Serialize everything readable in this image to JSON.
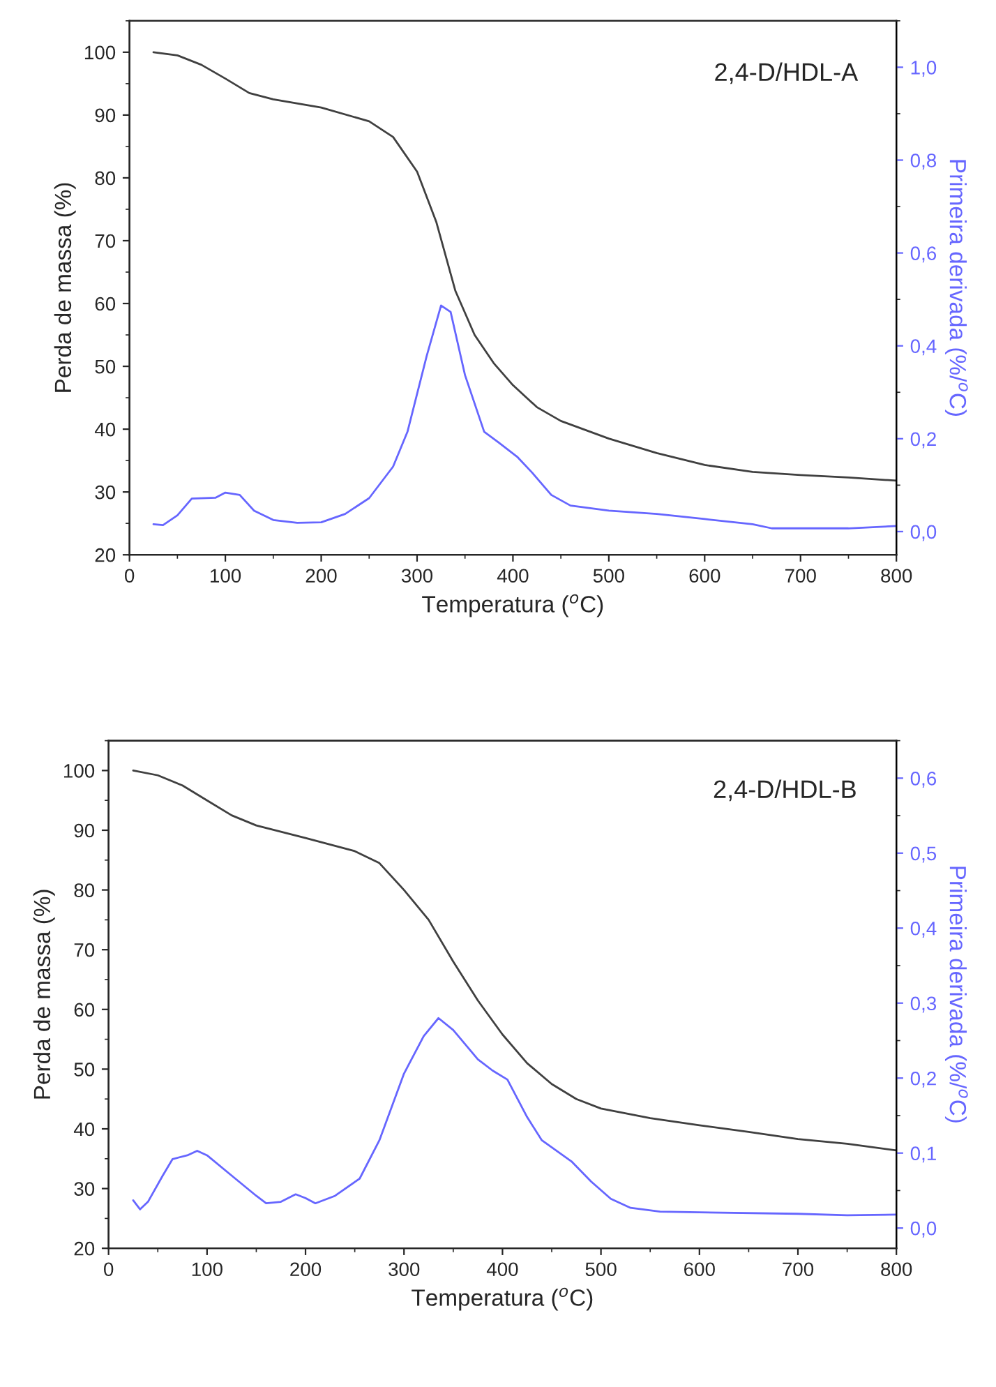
{
  "chart_data": [
    {
      "type": "line",
      "xlabel": "Temperatura ($^{o}$C)",
      "ylabel": "Perda de massa (%)",
      "y2label": "Primeira derivada (%/$^{o}$C)",
      "annotations": [
        "2,4-D/HDL-A"
      ],
      "xlim": [
        0,
        800
      ],
      "xticks": [
        0,
        100,
        200,
        300,
        400,
        500,
        600,
        700,
        800
      ],
      "ylim": [
        20,
        105
      ],
      "yticks": [
        20,
        30,
        40,
        50,
        60,
        70,
        80,
        90,
        100
      ],
      "y2lim": [
        -0.05,
        1.1
      ],
      "y2ticks": [
        {
          "value": 0,
          "label": "0,0"
        },
        {
          "value": 0.2,
          "label": "0,2"
        },
        {
          "value": 0.4,
          "label": "0,4"
        },
        {
          "value": 0.6,
          "label": "0,6"
        },
        {
          "value": 0.8,
          "label": "0,8"
        },
        {
          "value": 1.0,
          "label": "1,0"
        }
      ],
      "grid": false,
      "legend": false,
      "series": [
        {
          "color": "#404040",
          "x": [
            25,
            50,
            75,
            100,
            125,
            150,
            200,
            250,
            275,
            300,
            320,
            340,
            360,
            380,
            400,
            425,
            450,
            500,
            550,
            600,
            650,
            700,
            750,
            800
          ],
          "values": [
            100,
            99.5,
            98,
            95.8,
            93.5,
            92.5,
            91.2,
            89,
            86.5,
            81,
            73,
            62,
            55,
            50.5,
            47,
            43.5,
            41.3,
            38.5,
            36.2,
            34.3,
            33.2,
            32.7,
            32.3,
            31.8
          ]
        },
        {
          "color": "#6666ff",
          "axis": "y2",
          "x": [
            25,
            35,
            50,
            65,
            90,
            100,
            115,
            130,
            150,
            175,
            200,
            225,
            250,
            275,
            290,
            310,
            325,
            335,
            350,
            370,
            385,
            405,
            420,
            440,
            460,
            500,
            550,
            600,
            650,
            670,
            700,
            750,
            800
          ],
          "values": [
            0.016,
            0.014,
            0.035,
            0.071,
            0.073,
            0.084,
            0.079,
            0.045,
            0.025,
            0.019,
            0.02,
            0.038,
            0.072,
            0.14,
            0.215,
            0.378,
            0.487,
            0.473,
            0.337,
            0.215,
            0.192,
            0.16,
            0.127,
            0.079,
            0.056,
            0.045,
            0.038,
            0.027,
            0.016,
            0.007,
            0.007,
            0.007,
            0.012
          ]
        }
      ]
    },
    {
      "type": "line",
      "xlabel": "Temperatura ($^{o}$C)",
      "ylabel": "Perda de massa (%)",
      "y2label": "Primeira derivada (%/$^{o}$C)",
      "annotations": [
        "2,4-D/HDL-B"
      ],
      "xlim": [
        0,
        800
      ],
      "xticks": [
        0,
        100,
        200,
        300,
        400,
        500,
        600,
        700,
        800
      ],
      "ylim": [
        20,
        105
      ],
      "yticks": [
        20,
        30,
        40,
        50,
        60,
        70,
        80,
        90,
        100
      ],
      "y2lim": [
        -0.027,
        0.65
      ],
      "y2ticks": [
        {
          "value": 0,
          "label": "0,0"
        },
        {
          "value": 0.1,
          "label": "0,1"
        },
        {
          "value": 0.2,
          "label": "0,2"
        },
        {
          "value": 0.3,
          "label": "0,3"
        },
        {
          "value": 0.4,
          "label": "0,4"
        },
        {
          "value": 0.5,
          "label": "0,5"
        },
        {
          "value": 0.6,
          "label": "0,6"
        }
      ],
      "grid": false,
      "legend": false,
      "series": [
        {
          "color": "#404040",
          "x": [
            25,
            50,
            75,
            100,
            125,
            150,
            200,
            250,
            275,
            300,
            325,
            350,
            375,
            400,
            425,
            450,
            475,
            500,
            550,
            600,
            650,
            700,
            750,
            800
          ],
          "values": [
            100,
            99.2,
            97.5,
            95,
            92.5,
            90.8,
            88.7,
            86.5,
            84.5,
            80,
            75,
            68,
            61.5,
            55.8,
            51,
            47.5,
            45,
            43.4,
            41.8,
            40.6,
            39.5,
            38.3,
            37.5,
            36.4
          ]
        },
        {
          "color": "#6666ff",
          "axis": "y2",
          "x": [
            25,
            32,
            40,
            55,
            65,
            80,
            90,
            100,
            125,
            150,
            160,
            175,
            190,
            200,
            210,
            230,
            255,
            275,
            300,
            320,
            335,
            350,
            375,
            390,
            405,
            425,
            440,
            470,
            490,
            510,
            530,
            560,
            600,
            700,
            750,
            800
          ],
          "values": [
            0.037,
            0.025,
            0.035,
            0.07,
            0.092,
            0.097,
            0.103,
            0.097,
            0.07,
            0.043,
            0.033,
            0.035,
            0.045,
            0.04,
            0.033,
            0.043,
            0.066,
            0.117,
            0.206,
            0.256,
            0.28,
            0.264,
            0.225,
            0.21,
            0.198,
            0.148,
            0.117,
            0.089,
            0.062,
            0.039,
            0.027,
            0.022,
            0.021,
            0.019,
            0.017,
            0.018
          ]
        }
      ]
    }
  ]
}
